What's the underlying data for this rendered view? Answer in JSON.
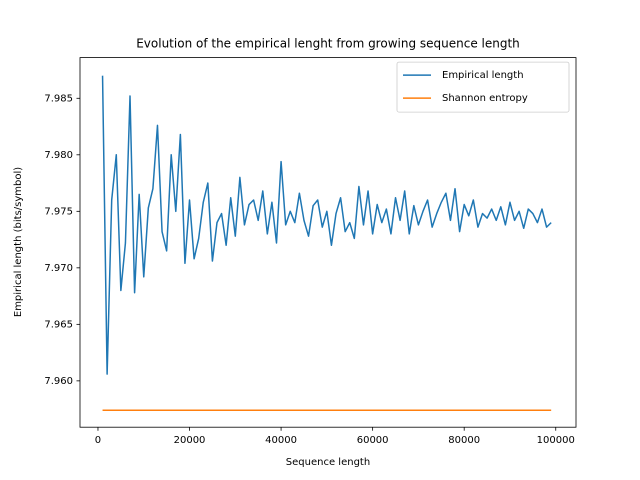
{
  "chart_data": {
    "type": "line",
    "title": "Evolution of the empirical lenght from growing sequence length",
    "x_label": "Sequence length",
    "y_label": "Empirical length (bits/symbol)",
    "x": [
      1000,
      2000,
      3000,
      4000,
      5000,
      6000,
      7000,
      8000,
      9000,
      10000,
      11000,
      12000,
      13000,
      14000,
      15000,
      16000,
      17000,
      18000,
      19000,
      20000,
      21000,
      22000,
      23000,
      24000,
      25000,
      26000,
      27000,
      28000,
      29000,
      30000,
      31000,
      32000,
      33000,
      34000,
      35000,
      36000,
      37000,
      38000,
      39000,
      40000,
      41000,
      42000,
      43000,
      44000,
      45000,
      46000,
      47000,
      48000,
      49000,
      50000,
      51000,
      52000,
      53000,
      54000,
      55000,
      56000,
      57000,
      58000,
      59000,
      60000,
      61000,
      62000,
      63000,
      64000,
      65000,
      66000,
      67000,
      68000,
      69000,
      70000,
      71000,
      72000,
      73000,
      74000,
      75000,
      76000,
      77000,
      78000,
      79000,
      80000,
      81000,
      82000,
      83000,
      84000,
      85000,
      86000,
      87000,
      88000,
      89000,
      90000,
      91000,
      92000,
      93000,
      94000,
      95000,
      96000,
      97000,
      98000,
      99000
    ],
    "series": [
      {
        "name": "Empirical length",
        "color": "#1f77b4",
        "values": [
          7.987,
          7.9606,
          7.976,
          7.98,
          7.968,
          7.9722,
          7.9852,
          7.9678,
          7.9765,
          7.9692,
          7.9753,
          7.977,
          7.9826,
          7.9732,
          7.9715,
          7.98,
          7.975,
          7.9818,
          7.9704,
          7.976,
          7.9708,
          7.9726,
          7.9758,
          7.9775,
          7.9706,
          7.974,
          7.9748,
          7.972,
          7.9762,
          7.9728,
          7.978,
          7.9738,
          7.9756,
          7.976,
          7.9742,
          7.9768,
          7.973,
          7.9758,
          7.9722,
          7.9794,
          7.9738,
          7.975,
          7.974,
          7.9766,
          7.9742,
          7.9728,
          7.9755,
          7.976,
          7.9736,
          7.975,
          7.972,
          7.9748,
          7.9762,
          7.9732,
          7.974,
          7.9726,
          7.9772,
          7.9738,
          7.9768,
          7.973,
          7.9756,
          7.974,
          7.9752,
          7.973,
          7.9762,
          7.9742,
          7.9768,
          7.973,
          7.9755,
          7.9738,
          7.975,
          7.976,
          7.9736,
          7.9748,
          7.9758,
          7.9766,
          7.9742,
          7.977,
          7.9732,
          7.9756,
          7.9746,
          7.976,
          7.9736,
          7.9748,
          7.9744,
          7.9752,
          7.9742,
          7.9754,
          7.9738,
          7.9758,
          7.9742,
          7.975,
          7.9735,
          7.9752,
          7.9748,
          7.974,
          7.9752,
          7.9736,
          7.974
        ]
      },
      {
        "name": "Shannon entropy",
        "color": "#ff7f0e",
        "x": [
          1000,
          99000
        ],
        "values": [
          7.9574,
          7.9574
        ]
      }
    ],
    "xlim": [
      -3925,
      104425
    ],
    "ylim": [
      7.9559,
      7.9886
    ],
    "xticks": [
      0,
      20000,
      40000,
      60000,
      80000,
      100000
    ],
    "yticks": [
      {
        "value": 7.96,
        "label": "7.960"
      },
      7.965,
      {
        "value": 7.97,
        "label": "7.970"
      },
      7.975,
      {
        "value": 7.98,
        "label": "7.980"
      },
      7.985
    ],
    "grid": false,
    "legend": "upper-right"
  }
}
